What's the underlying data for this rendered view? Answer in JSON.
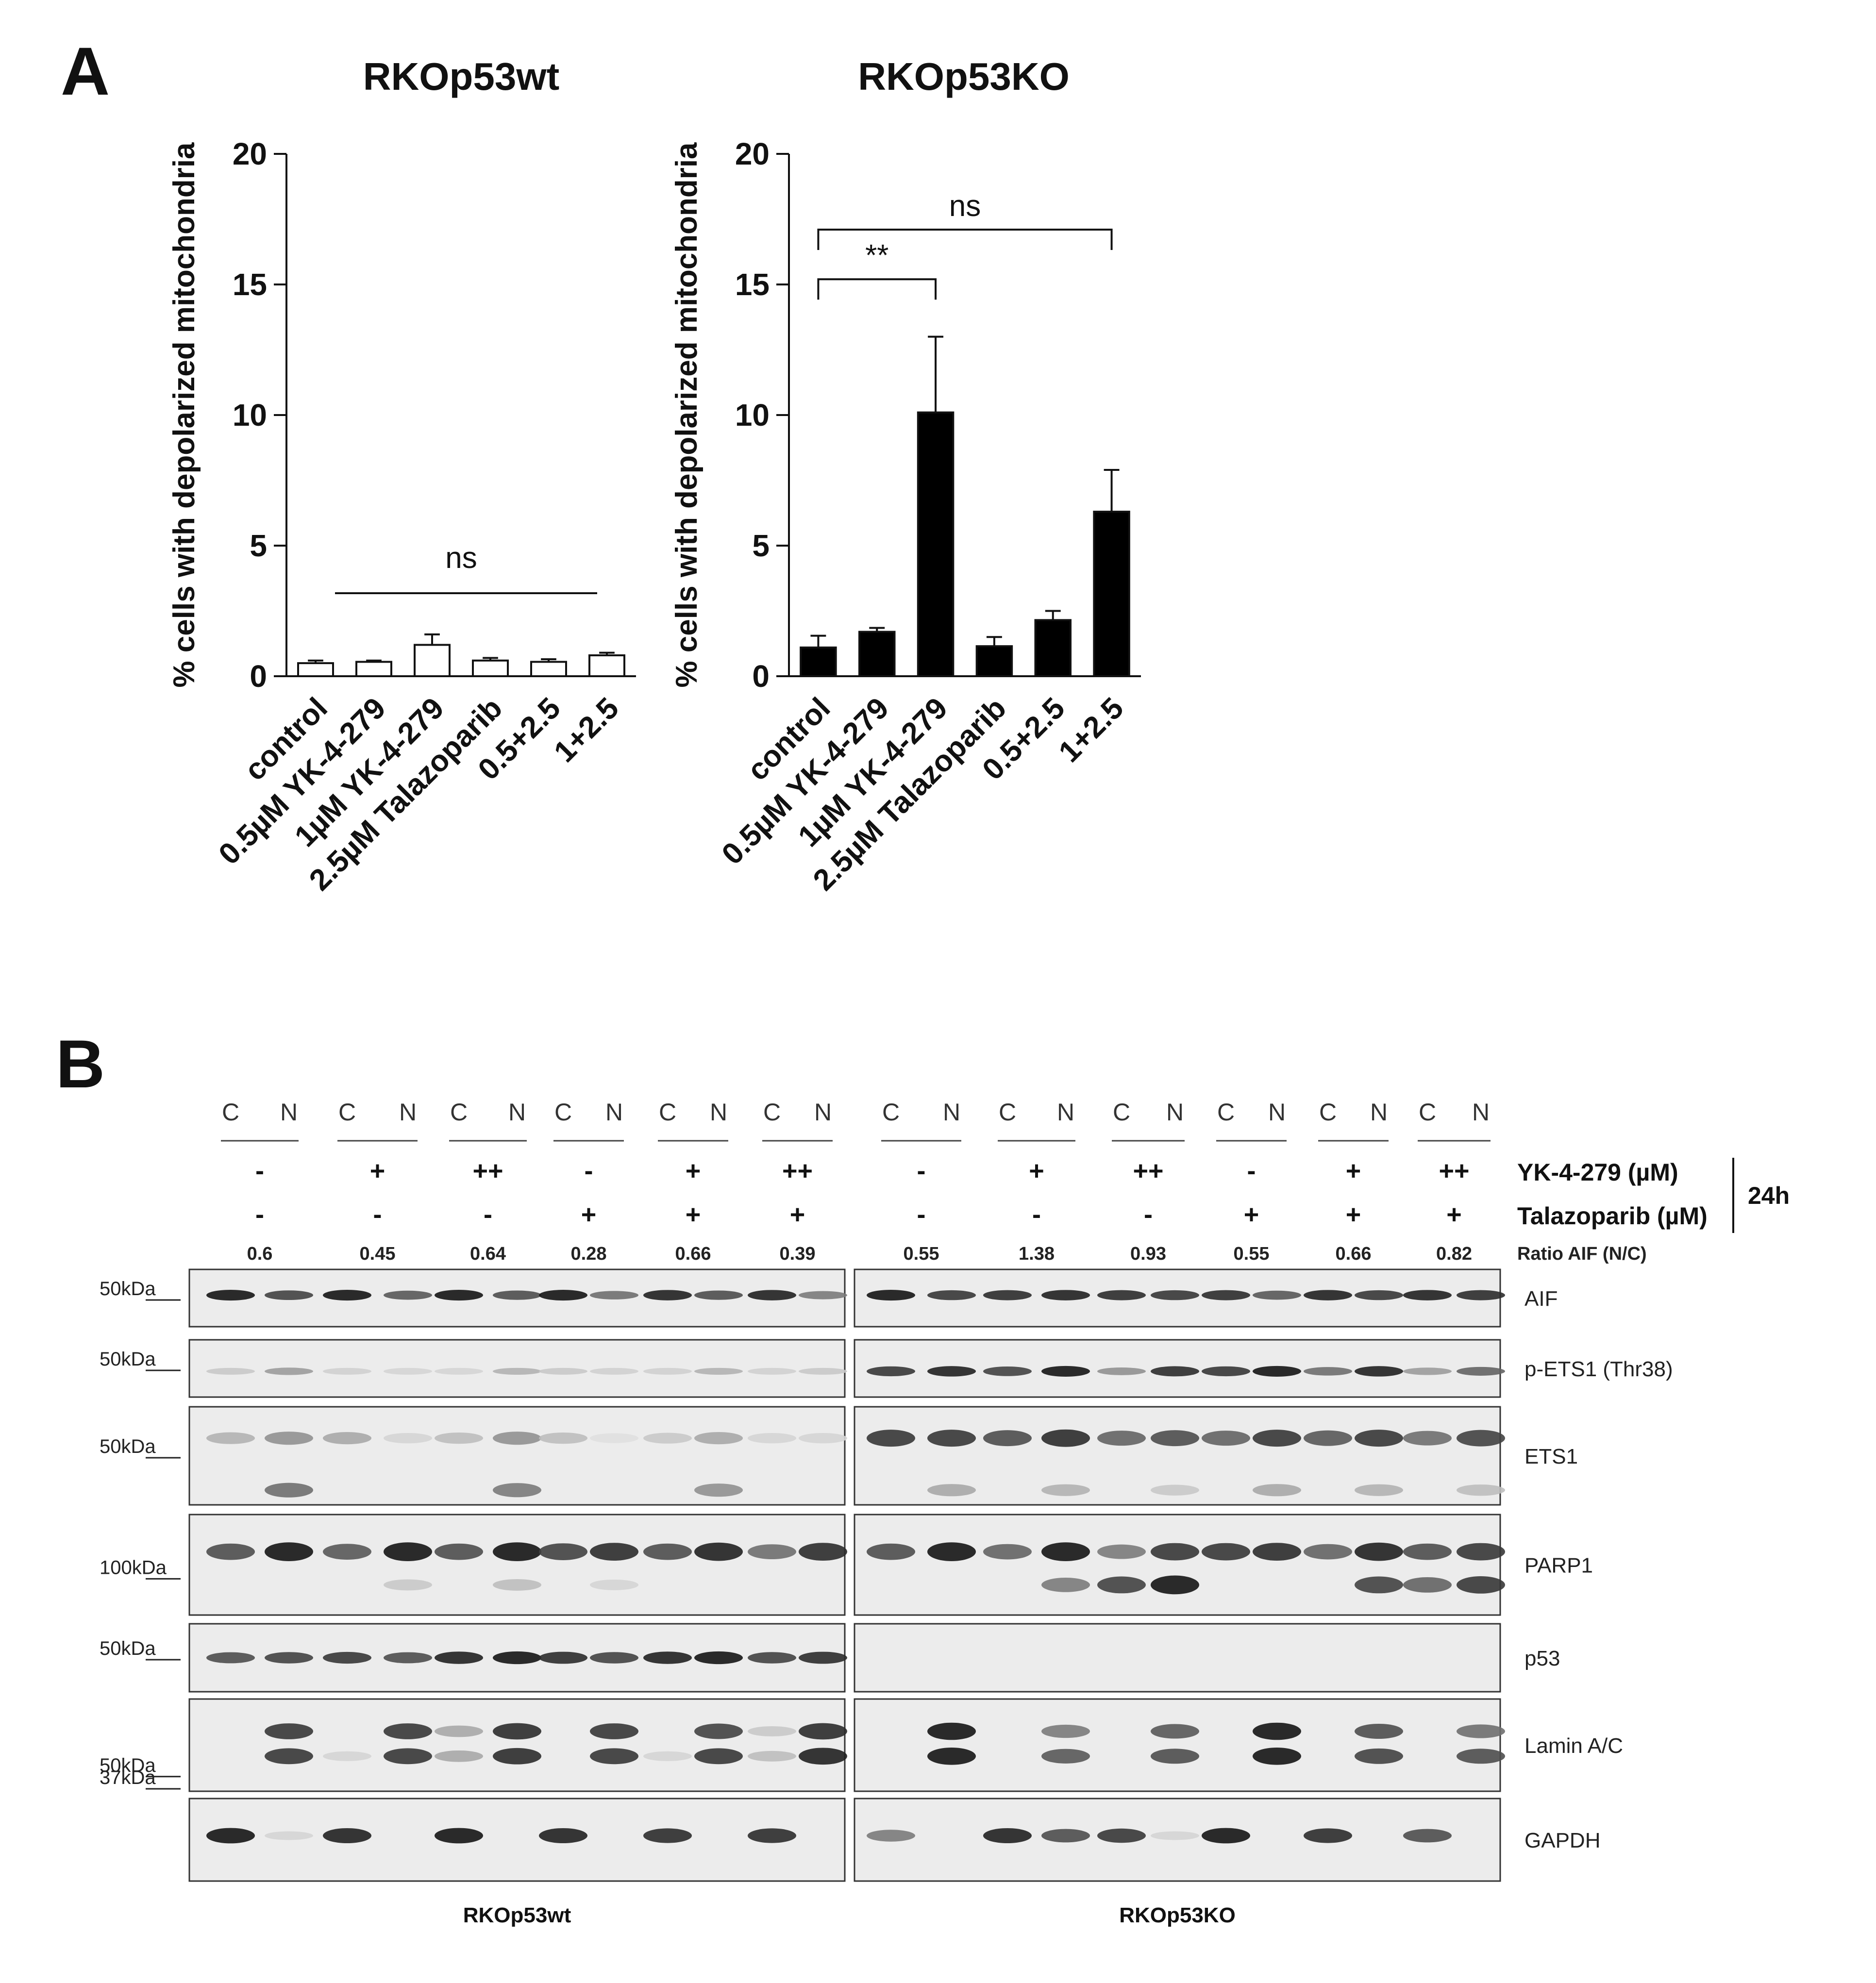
{
  "figure": {
    "panel_a_label": "A",
    "panel_b_label": "B"
  },
  "chart_data": [
    {
      "type": "bar",
      "title": "RKOp53wt",
      "ylabel": "% cells with depolarized mitochondria",
      "xlabel": "",
      "ylim": [
        0,
        20
      ],
      "yticks": [
        0,
        5,
        10,
        15,
        20
      ],
      "categories": [
        "control",
        "0.5µM YK-4-279",
        "1µM YK-4-279",
        "2.5µM Talazoparib",
        "0.5+2.5",
        "1+2.5"
      ],
      "values": [
        0.5,
        0.55,
        1.2,
        0.6,
        0.55,
        0.8
      ],
      "errors": [
        0.1,
        0.05,
        0.4,
        0.1,
        0.1,
        0.1
      ],
      "bar_color": "#ffffff",
      "annotations": [
        {
          "label": "ns",
          "from": "control",
          "to": "1+2.5",
          "style": "line"
        }
      ]
    },
    {
      "type": "bar",
      "title": "RKOp53KO",
      "ylabel": "% cells with depolarized mitochondria",
      "xlabel": "",
      "ylim": [
        0,
        20
      ],
      "yticks": [
        0,
        5,
        10,
        15,
        20
      ],
      "categories": [
        "control",
        "0.5µM YK-4-279",
        "1µM YK-4-279",
        "2.5µM Talazoparib",
        "0.5+2.5",
        "1+2.5"
      ],
      "values": [
        1.1,
        1.7,
        10.1,
        1.15,
        2.15,
        6.3
      ],
      "errors": [
        0.45,
        0.15,
        2.9,
        0.35,
        0.35,
        1.6
      ],
      "bar_color": "#000000",
      "annotations": [
        {
          "label": "ns",
          "from": "control",
          "to": "1+2.5",
          "style": "bracket",
          "level": 17.1
        },
        {
          "label": "**",
          "from": "control",
          "to": "1µM YK-4-279",
          "style": "bracket",
          "level": 15.2
        }
      ]
    }
  ],
  "blot": {
    "cn_labels": [
      "C",
      "N"
    ],
    "yk_row": [
      "-",
      "+",
      "++",
      "-",
      "+",
      "++"
    ],
    "tal_row": [
      "-",
      "-",
      "-",
      "+",
      "+",
      "+"
    ],
    "treatment_labels": {
      "yk": "YK-4-279 (µM)",
      "tal": "Talazoparib (µM)",
      "time": "24h"
    },
    "ratio_label": "Ratio AIF (N/C)",
    "ratios_wt": [
      "0.6",
      "0.45",
      "0.64",
      "0.28",
      "0.66",
      "0.39"
    ],
    "ratios_ko": [
      "0.55",
      "1.38",
      "0.93",
      "0.55",
      "0.66",
      "0.82"
    ],
    "proteins": [
      "AIF",
      "p-ETS1 (Thr38)",
      "ETS1",
      "PARP1",
      "p53",
      "Lamin A/C",
      "GAPDH"
    ],
    "markers": [
      "50kDa",
      "50kDa",
      "50kDa",
      "100kDa",
      "50kDa",
      "50kDa",
      "37kDa"
    ],
    "cell_lines": [
      "RKOp53wt",
      "RKOp53KO"
    ]
  }
}
